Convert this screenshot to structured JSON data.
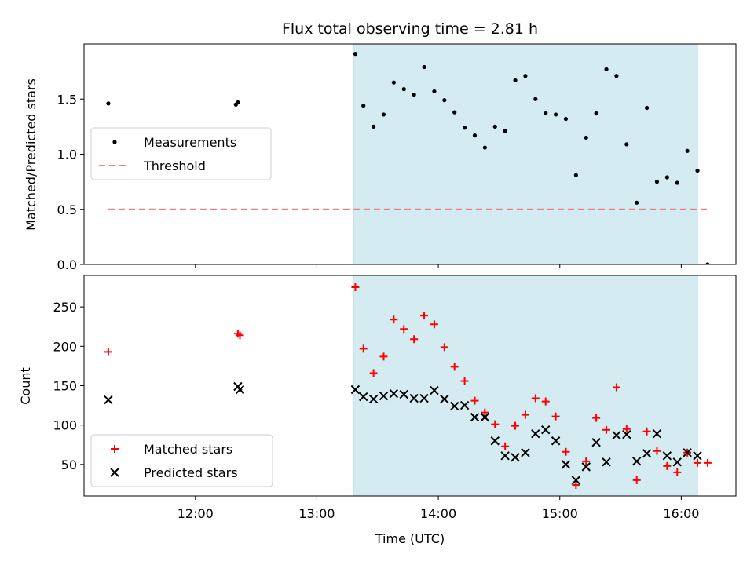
{
  "colors": {
    "shade": "#d4ebf1",
    "shade_edge": "#add8e6",
    "threshold": "#f08080",
    "matched": "#ff0000",
    "predicted": "#000000",
    "measurement": "#000000"
  },
  "chart_data": [
    {
      "type": "scatter",
      "title": "Flux total observing time = 2.81 h",
      "xlabel": "",
      "ylabel": "Matched/Predicted stars",
      "xlim": [
        "11:05",
        "16:27"
      ],
      "ylim": [
        0,
        2.0
      ],
      "yticks": [
        "0.0",
        "0.5",
        "1.0",
        "1.5"
      ],
      "grid": false,
      "legend_location": "center-left",
      "shaded_interval": [
        "13:18",
        "16:08"
      ],
      "series": [
        {
          "name": "Measurements",
          "marker": "dot",
          "x": [
            "11:17",
            "12:20",
            "12:21",
            "13:19",
            "13:23",
            "13:28",
            "13:33",
            "13:38",
            "13:43",
            "13:48",
            "13:53",
            "13:58",
            "14:03",
            "14:08",
            "14:13",
            "14:18",
            "14:23",
            "14:28",
            "14:33",
            "14:38",
            "14:43",
            "14:48",
            "14:53",
            "14:58",
            "15:03",
            "15:08",
            "15:13",
            "15:18",
            "15:23",
            "15:28",
            "15:33",
            "15:38",
            "15:43",
            "15:48",
            "15:53",
            "15:58",
            "16:03",
            "16:08",
            "16:13"
          ],
          "y": [
            1.46,
            1.45,
            1.47,
            1.91,
            1.44,
            1.25,
            1.36,
            1.65,
            1.59,
            1.54,
            1.79,
            1.57,
            1.49,
            1.38,
            1.24,
            1.17,
            1.06,
            1.25,
            1.21,
            1.67,
            1.71,
            1.5,
            1.37,
            1.36,
            1.32,
            0.81,
            1.15,
            1.37,
            1.77,
            1.71,
            1.09,
            0.56,
            1.42,
            0.75,
            0.79,
            0.74,
            1.03,
            0.85,
            0.0
          ]
        },
        {
          "name": "Threshold",
          "marker": "dashed-line",
          "x": [
            "11:17",
            "16:13"
          ],
          "y": [
            0.5,
            0.5
          ]
        }
      ]
    },
    {
      "type": "scatter",
      "title": "",
      "xlabel": "Time (UTC)",
      "ylabel": "Count",
      "xlim": [
        "11:05",
        "16:27"
      ],
      "ylim": [
        10,
        290
      ],
      "yticks": [
        "50",
        "100",
        "150",
        "200",
        "250"
      ],
      "xticks": [
        "12:00",
        "13:00",
        "14:00",
        "15:00",
        "16:00"
      ],
      "grid": false,
      "legend_location": "lower-left",
      "shaded_interval": [
        "13:18",
        "16:08"
      ],
      "series": [
        {
          "name": "Matched stars",
          "marker": "plus",
          "x": [
            "11:17",
            "12:21",
            "12:22",
            "13:19",
            "13:23",
            "13:28",
            "13:33",
            "13:38",
            "13:43",
            "13:48",
            "13:53",
            "13:58",
            "14:03",
            "14:08",
            "14:13",
            "14:18",
            "14:23",
            "14:28",
            "14:33",
            "14:38",
            "14:43",
            "14:48",
            "14:53",
            "14:58",
            "15:03",
            "15:08",
            "15:13",
            "15:18",
            "15:23",
            "15:28",
            "15:33",
            "15:38",
            "15:43",
            "15:48",
            "15:53",
            "15:58",
            "16:03",
            "16:08",
            "16:13"
          ],
          "y": [
            193,
            216,
            214,
            275,
            197,
            166,
            187,
            234,
            222,
            209,
            239,
            228,
            199,
            174,
            156,
            131,
            116,
            101,
            73,
            99,
            113,
            134,
            130,
            111,
            66,
            24,
            54,
            109,
            94,
            148,
            95,
            30,
            92,
            67,
            48,
            40,
            65,
            52,
            52
          ]
        },
        {
          "name": "Predicted stars",
          "marker": "x",
          "x": [
            "11:17",
            "12:21",
            "12:22",
            "13:19",
            "13:23",
            "13:28",
            "13:33",
            "13:38",
            "13:43",
            "13:48",
            "13:53",
            "13:58",
            "14:03",
            "14:08",
            "14:13",
            "14:18",
            "14:23",
            "14:28",
            "14:33",
            "14:38",
            "14:43",
            "14:48",
            "14:53",
            "14:58",
            "15:03",
            "15:08",
            "15:13",
            "15:18",
            "15:23",
            "15:28",
            "15:33",
            "15:38",
            "15:43",
            "15:48",
            "15:53",
            "15:58",
            "16:03",
            "16:08"
          ],
          "y": [
            132,
            149,
            145,
            145,
            136,
            133,
            137,
            140,
            139,
            134,
            134,
            144,
            133,
            124,
            125,
            110,
            110,
            80,
            61,
            59,
            65,
            89,
            94,
            80,
            50,
            30,
            47,
            78,
            53,
            87,
            88,
            54,
            64,
            89,
            61,
            53,
            65,
            61
          ]
        }
      ]
    }
  ]
}
